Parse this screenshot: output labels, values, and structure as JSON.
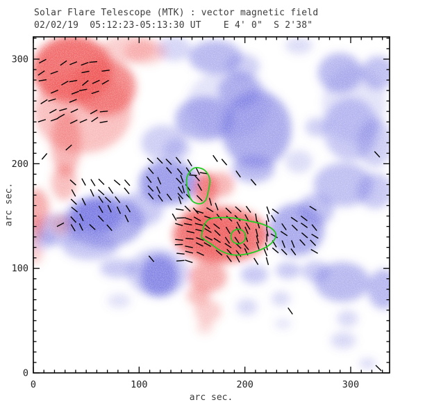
{
  "header": {
    "title": "Solar Flare Telescope (MTK) : vector magnetic field",
    "subtitle": "02/02/19  05:12:23-05:13:30 UT    E 4' 0\"  S 2'38\""
  },
  "chart_data": {
    "type": "heatmap",
    "title": "Solar Flare Telescope (MTK) : vector magnetic field",
    "subtitle": "02/02/19  05:12:23-05:13:30 UT    E 4' 0\"  S 2'38\"",
    "xlabel": "arc sec.",
    "ylabel": "arc sec.",
    "xlim": [
      0,
      337
    ],
    "ylim": [
      0,
      321
    ],
    "xticks": [
      0,
      100,
      200,
      300
    ],
    "yticks": [
      0,
      100,
      200,
      300
    ],
    "minor_tick_interval": 10,
    "grid": false,
    "legend": "none",
    "colors": {
      "positive_field": "#ee5252",
      "negative_field": "#6e6ee0",
      "contour": "#22cc22",
      "vector": "#000000",
      "axis": "#000000",
      "text": "#3c3c3c",
      "background": "#ffffff"
    },
    "blob_fields": [
      "x_arcsec",
      "y_arcsec",
      "rx",
      "ry",
      "opacity"
    ],
    "red_blobs": [
      [
        37,
        290,
        38,
        32,
        0.85
      ],
      [
        67,
        273,
        30,
        27,
        0.7
      ],
      [
        47,
        250,
        46,
        40,
        0.38
      ],
      [
        90,
        310,
        26,
        13,
        0.3
      ],
      [
        106,
        307,
        20,
        12,
        0.28
      ],
      [
        31,
        220,
        14,
        32,
        0.45
      ],
      [
        29,
        182,
        12,
        17,
        0.4
      ],
      [
        3,
        157,
        12,
        19,
        0.5
      ],
      [
        1,
        137,
        9,
        12,
        0.38
      ],
      [
        1,
        114,
        8,
        10,
        0.3
      ],
      [
        25.6,
        142,
        10,
        10,
        0.28
      ],
      [
        163,
        175,
        10.5,
        17,
        0.75
      ],
      [
        177,
        180,
        13,
        12,
        0.45
      ],
      [
        177,
        132,
        45,
        27,
        0.8
      ],
      [
        175,
        130,
        30,
        18,
        0.5
      ],
      [
        156,
        147,
        16,
        11,
        0.55
      ],
      [
        165,
        92,
        18,
        15,
        0.5
      ],
      [
        156,
        74,
        11,
        9,
        0.4
      ],
      [
        165,
        59,
        13,
        11,
        0.3
      ],
      [
        162,
        44,
        8,
        7,
        0.22
      ]
    ],
    "blue_blobs": [
      [
        172,
        302,
        25,
        16,
        0.5
      ],
      [
        198,
        293,
        16,
        12,
        0.35
      ],
      [
        133,
        310,
        16,
        12,
        0.3
      ],
      [
        251,
        313,
        13,
        8,
        0.25
      ],
      [
        162,
        243,
        28,
        21,
        0.55
      ],
      [
        211,
        233,
        33,
        37,
        0.6
      ],
      [
        195,
        270,
        20,
        17,
        0.5
      ],
      [
        208,
        195,
        20,
        13,
        0.5
      ],
      [
        123,
        220,
        21,
        17,
        0.35
      ],
      [
        136,
        214,
        13,
        10,
        0.3
      ],
      [
        185,
        257,
        40,
        33,
        0.2
      ],
      [
        67,
        145,
        38,
        25,
        0.6
      ],
      [
        60,
        150,
        24,
        17,
        0.75
      ],
      [
        24,
        137,
        23,
        15,
        0.45
      ],
      [
        54,
        120,
        26,
        12,
        0.4
      ],
      [
        8,
        127,
        12,
        9,
        0.35
      ],
      [
        128,
        182,
        28,
        21,
        0.7
      ],
      [
        103,
        157,
        20,
        17,
        0.4
      ],
      [
        249,
        137,
        26,
        25,
        0.6
      ],
      [
        267,
        156,
        17,
        15,
        0.45
      ],
      [
        290,
        287,
        21,
        19,
        0.5
      ],
      [
        326,
        287,
        16,
        16,
        0.45
      ],
      [
        300,
        233,
        26,
        30,
        0.4
      ],
      [
        323,
        220,
        17,
        23,
        0.35
      ],
      [
        303,
        257,
        30,
        37,
        0.2
      ],
      [
        293,
        180,
        28,
        21,
        0.45
      ],
      [
        323,
        174,
        17,
        17,
        0.4
      ],
      [
        268,
        235,
        11,
        9,
        0.35
      ],
      [
        251,
        202,
        13,
        11,
        0.25
      ],
      [
        119,
        93,
        18,
        20,
        0.75
      ],
      [
        118,
        96,
        29,
        23,
        0.35
      ],
      [
        81,
        100,
        18,
        9,
        0.4
      ],
      [
        81,
        69,
        11,
        7,
        0.22
      ],
      [
        292,
        87,
        26,
        19,
        0.5
      ],
      [
        267,
        97,
        13,
        10,
        0.4
      ],
      [
        331,
        80,
        15,
        19,
        0.5
      ],
      [
        209,
        94,
        13,
        9,
        0.4
      ],
      [
        241,
        98,
        12,
        8,
        0.4
      ],
      [
        234,
        71,
        9,
        7,
        0.28
      ],
      [
        202,
        63,
        10,
        8,
        0.28
      ],
      [
        297,
        52,
        10,
        8,
        0.28
      ],
      [
        293,
        31,
        12,
        8,
        0.28
      ],
      [
        316,
        9,
        8,
        5,
        0.28
      ],
      [
        236,
        47,
        8,
        5,
        0.2
      ]
    ],
    "green_contours": [
      {
        "name": "flare-contour-upper-bean",
        "points": [
          [
            154.3,
            196.3
          ],
          [
            162.2,
            193.6
          ],
          [
            166.8,
            185.0
          ],
          [
            165.4,
            173.7
          ],
          [
            162.8,
            165.0
          ],
          [
            156.9,
            161.7
          ],
          [
            149.7,
            165.0
          ],
          [
            145.8,
            175.6
          ],
          [
            145.1,
            186.3
          ],
          [
            149.0,
            193.6
          ]
        ]
      },
      {
        "name": "flare-contour-main",
        "points": [
          [
            158.9,
            131.7
          ],
          [
            165.4,
            146.4
          ],
          [
            185.2,
            148.4
          ],
          [
            201.6,
            145.7
          ],
          [
            216.0,
            142.4
          ],
          [
            226.5,
            137.1
          ],
          [
            229.2,
            130.4
          ],
          [
            223.2,
            122.4
          ],
          [
            211.4,
            116.4
          ],
          [
            198.3,
            113.1
          ],
          [
            187.1,
            113.1
          ],
          [
            176.6,
            117.1
          ],
          [
            168.1,
            123.1
          ],
          [
            161.5,
            127.7
          ]
        ]
      },
      {
        "name": "flare-contour-inner-core",
        "points": [
          [
            200.7,
            130.4
          ],
          [
            198.7,
            135.3
          ],
          [
            193.7,
            137.4
          ],
          [
            188.7,
            135.3
          ],
          [
            186.7,
            130.4
          ],
          [
            188.7,
            125.5
          ],
          [
            193.7,
            123.4
          ],
          [
            198.7,
            125.5
          ]
        ]
      }
    ],
    "vector_field": {
      "segment_length_arcsec": 7.5,
      "clusters": [
        {
          "name": "top-left-plage",
          "x": 9,
          "y": 297,
          "cols": 7,
          "rows": 7,
          "dx": 9.8,
          "dy": -9.3,
          "angle": 22,
          "angle_dcol": 0,
          "jitter": 18,
          "skip": 0.3
        },
        {
          "name": "upper-center-negative",
          "x": 110,
          "y": 202,
          "cols": 6,
          "rows": 5,
          "dx": 9.2,
          "dy": -8.6,
          "angle": -55,
          "angle_dcol": 0,
          "jitter": 12,
          "skip": 0.2
        },
        {
          "name": "center-left-negative",
          "x": 38,
          "y": 182,
          "cols": 7,
          "rows": 6,
          "dx": 8.5,
          "dy": -8.6,
          "angle": -52,
          "angle_dcol": 0,
          "jitter": 14,
          "skip": 0.25
        },
        {
          "name": "central-positive-spot",
          "x": 138,
          "y": 155,
          "cols": 10,
          "rows": 8,
          "dx": 9.2,
          "dy": -6.7,
          "angle": -8,
          "angle_dcol": -7.8,
          "jitter": 13,
          "skip": 0.18
        },
        {
          "name": "right-of-spot-negative",
          "x": 228,
          "y": 156,
          "cols": 5,
          "rows": 6,
          "dx": 9.2,
          "dy": -8,
          "angle": -50,
          "angle_dcol": 0,
          "jitter": 20,
          "skip": 0.3
        }
      ],
      "singles": [
        [
          151,
          189,
          -5
        ],
        [
          161,
          191,
          -10
        ],
        [
          140.5,
          185.6,
          -70
        ],
        [
          141.8,
          175.6,
          -75
        ],
        [
          138.5,
          165,
          -72
        ],
        [
          145.8,
          157,
          -45
        ],
        [
          153.6,
          155,
          -50
        ],
        [
          133.3,
          149,
          -60
        ],
        [
          167.4,
          163.6,
          -75
        ],
        [
          173.3,
          159,
          -70
        ],
        [
          26.3,
          245.5,
          30
        ],
        [
          33.5,
          215.5,
          42
        ],
        [
          10.5,
          207,
          50
        ],
        [
          25.6,
          141.7,
          28
        ],
        [
          111.6,
          109.1,
          -50
        ],
        [
          325,
          209,
          -48
        ],
        [
          326.3,
          4.7,
          -45
        ],
        [
          242.9,
          59.2,
          -55
        ],
        [
          172,
          205,
          -55
        ],
        [
          180.5,
          201.6,
          -50
        ],
        [
          193.7,
          190.2,
          -55
        ],
        [
          208.1,
          182.3,
          -50
        ]
      ]
    }
  }
}
